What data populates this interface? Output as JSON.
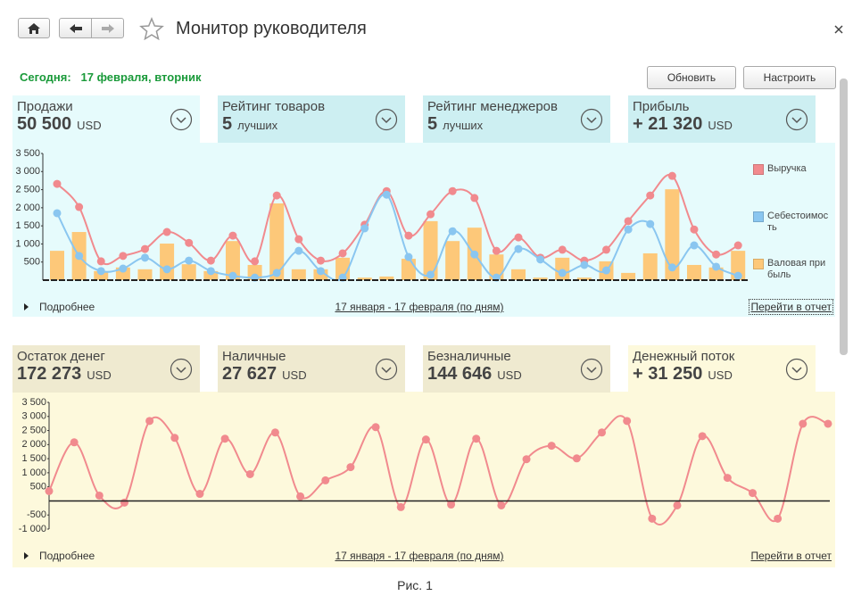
{
  "header": {
    "title": "Монитор руководителя"
  },
  "today": {
    "label": "Сегодня:",
    "date": "17 февраля, вторник"
  },
  "buttons": [
    "Обновить",
    "Настроить"
  ],
  "panels": [
    {
      "tiles": [
        {
          "title": "Продажи",
          "value": "50 500",
          "unit": "USD"
        },
        {
          "title": "Рейтинг товаров",
          "value": "5",
          "unit": "лучших"
        },
        {
          "title": "Рейтинг менеджеров",
          "value": "5",
          "unit": "лучших"
        },
        {
          "title": "Прибыль",
          "value": "+ 21 320",
          "unit": "USD"
        }
      ],
      "more": "Подробнее",
      "period": "17 января - 17 февраля (по дням)",
      "report": "Перейти в отчет"
    },
    {
      "tiles": [
        {
          "title": "Остаток денег",
          "value": "172 273",
          "unit": "USD"
        },
        {
          "title": "Наличные",
          "value": "27 627",
          "unit": "USD"
        },
        {
          "title": "Безналичные",
          "value": "144 646",
          "unit": "USD"
        },
        {
          "title": "Денежный поток",
          "value": "+ 31 250",
          "unit": "USD"
        }
      ],
      "more": "Подробнее",
      "period": "17 января - 17 февраля (по дням)",
      "report": "Перейти в отчет"
    }
  ],
  "chart_data": [
    {
      "type": "combo",
      "legend": "right",
      "grid": false,
      "ylim": [
        0,
        3500
      ],
      "yticks": [
        500,
        {
          "value": 1000,
          "label": "1 000"
        },
        {
          "value": 1500,
          "label": "1 500"
        },
        {
          "value": 2000,
          "label": "2 000"
        },
        {
          "value": 2500,
          "label": "2 500"
        },
        {
          "value": 3000,
          "label": "3 000"
        },
        {
          "value": 3500,
          "label": "3 500"
        }
      ],
      "series": [
        {
          "name": "Выручка",
          "type": "line",
          "color": "#f18a8e",
          "values": [
            2660,
            2020,
            520,
            670,
            860,
            1330,
            1030,
            540,
            1230,
            520,
            2340,
            1130,
            540,
            740,
            1530,
            2460,
            1230,
            1820,
            2460,
            2270,
            810,
            1180,
            620,
            840,
            540,
            840,
            1630,
            2340,
            2880,
            1400,
            710,
            960
          ]
        },
        {
          "name": "Себестоимость",
          "type": "line",
          "color": "#8ac6f0",
          "values": [
            1850,
            670,
            250,
            320,
            620,
            300,
            540,
            250,
            120,
            70,
            200,
            810,
            250,
            70,
            1430,
            2360,
            640,
            150,
            1350,
            710,
            70,
            860,
            570,
            200,
            420,
            270,
            1400,
            1550,
            350,
            960,
            370,
            120
          ]
        },
        {
          "name": "Валовая прибыль",
          "type": "bar",
          "color": "#fdc879",
          "values": [
            810,
            1330,
            250,
            350,
            300,
            1010,
            440,
            250,
            1080,
            420,
            2120,
            300,
            300,
            620,
            70,
            100,
            590,
            1630,
            1080,
            1450,
            710,
            300,
            70,
            620,
            70,
            520,
            200,
            740,
            2510,
            420,
            350,
            810
          ]
        }
      ]
    },
    {
      "type": "line",
      "grid": false,
      "ylim": [
        -1000,
        3500
      ],
      "yticks": [
        {
          "value": -1000,
          "label": "-1 000"
        },
        -500,
        500,
        {
          "value": 1000,
          "label": "1 000"
        },
        {
          "value": 1500,
          "label": "1 500"
        },
        {
          "value": 2000,
          "label": "2 000"
        },
        {
          "value": 2500,
          "label": "2 500"
        },
        {
          "value": 3000,
          "label": "3 000"
        },
        {
          "value": 3500,
          "label": "3 500"
        }
      ],
      "series": [
        {
          "type": "line",
          "color": "#f18a8e",
          "values": [
            350,
            2080,
            190,
            -60,
            2840,
            2240,
            250,
            2210,
            950,
            2430,
            160,
            730,
            1200,
            2620,
            -220,
            2180,
            -130,
            2210,
            -160,
            1480,
            1960,
            1510,
            2430,
            2840,
            -630,
            -160,
            2300,
            820,
            280,
            -630,
            2740,
            2740
          ]
        }
      ]
    }
  ],
  "caption": "Рис. 1"
}
